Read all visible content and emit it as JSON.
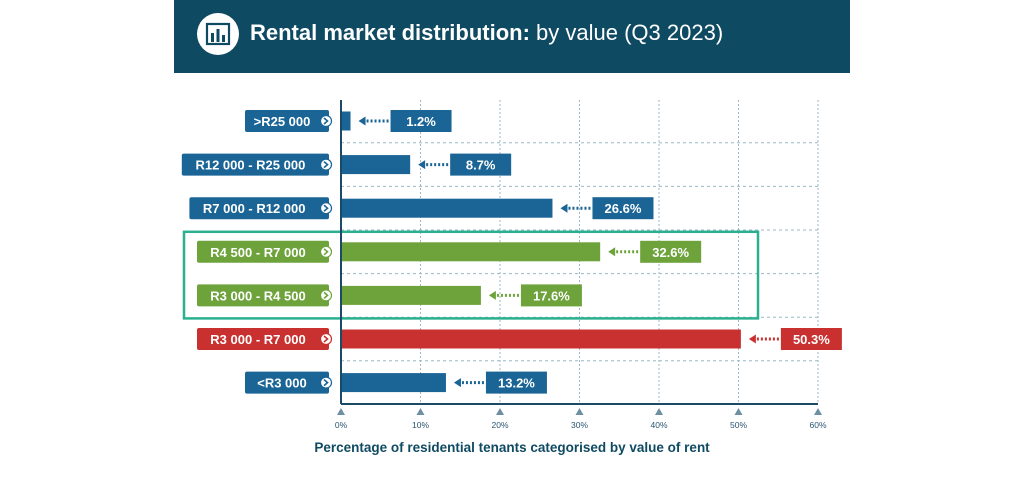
{
  "header": {
    "title_bold": "Rental market distribution:",
    "title_rest": " by value (Q3 2023)",
    "icon": "bar-chart-icon"
  },
  "colors": {
    "header_bg": "#0f4a63",
    "blue": "#1a6496",
    "green": "#6ea33b",
    "red": "#c8312f",
    "highlight_box": "#2bb08f",
    "grid": "#9ab8c6",
    "axis": "#1a4a66"
  },
  "chart_data": {
    "type": "bar",
    "orientation": "horizontal",
    "categories": [
      ">R25 000",
      "R12 000 - R25 000",
      "R7 000 - R12 000",
      "R4 500 - R7 000",
      "R3 000 - R4 500",
      "R3 000 - R7 000",
      "<R3 000"
    ],
    "values": [
      1.2,
      8.7,
      26.6,
      32.6,
      17.6,
      50.3,
      13.2
    ],
    "value_labels": [
      "1.2%",
      "8.7%",
      "26.6%",
      "32.6%",
      "17.6%",
      "50.3%",
      "13.2%"
    ],
    "bar_colors": [
      "blue",
      "blue",
      "blue",
      "green",
      "green",
      "red",
      "blue"
    ],
    "highlighted_categories": [
      "R4 500 - R7 000",
      "R3 000 - R4 500"
    ],
    "xlim": [
      0,
      60
    ],
    "xticks": [
      "0%",
      "10%",
      "20%",
      "30%",
      "40%",
      "50%",
      "60%"
    ],
    "xlabel": "Percentage of residential tenants categorised by value of rent",
    "grid": true
  }
}
